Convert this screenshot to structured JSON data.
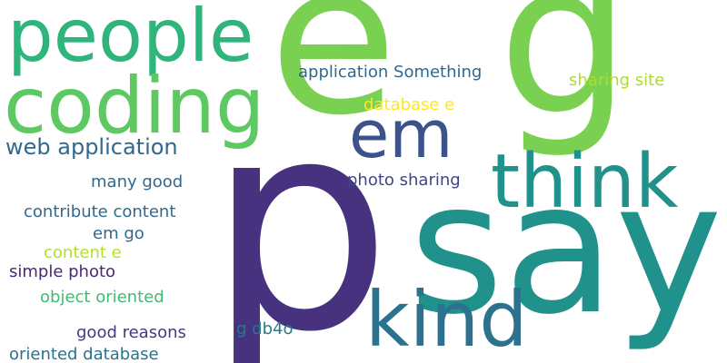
{
  "words": [
    {
      "text": "p",
      "color": "#46327e"
    },
    {
      "text": "say",
      "color": "#21918c"
    },
    {
      "text": "e",
      "color": "#7ad151"
    },
    {
      "text": "g",
      "color": "#7ad151"
    },
    {
      "text": "people",
      "color": "#2fb47c"
    },
    {
      "text": "coding",
      "color": "#5ec962"
    },
    {
      "text": "think",
      "color": "#21918c"
    },
    {
      "text": "kind",
      "color": "#2c728e"
    },
    {
      "text": "em",
      "color": "#3b528b"
    },
    {
      "text": "web application",
      "color": "#31688e"
    },
    {
      "text": "application Something",
      "color": "#31688e"
    },
    {
      "text": "sharing site",
      "color": "#addc30"
    },
    {
      "text": "database e",
      "color": "#fde725"
    },
    {
      "text": "photo sharing",
      "color": "#414487"
    },
    {
      "text": "many good",
      "color": "#31688e"
    },
    {
      "text": "contribute content",
      "color": "#31688e"
    },
    {
      "text": "em go",
      "color": "#31688e"
    },
    {
      "text": "content e",
      "color": "#b5de2b"
    },
    {
      "text": "simple photo",
      "color": "#482878"
    },
    {
      "text": "object oriented",
      "color": "#3fbc73"
    },
    {
      "text": "good reasons",
      "color": "#443983"
    },
    {
      "text": "g db4o",
      "color": "#2a788e"
    },
    {
      "text": "oriented database",
      "color": "#2c728e"
    }
  ]
}
